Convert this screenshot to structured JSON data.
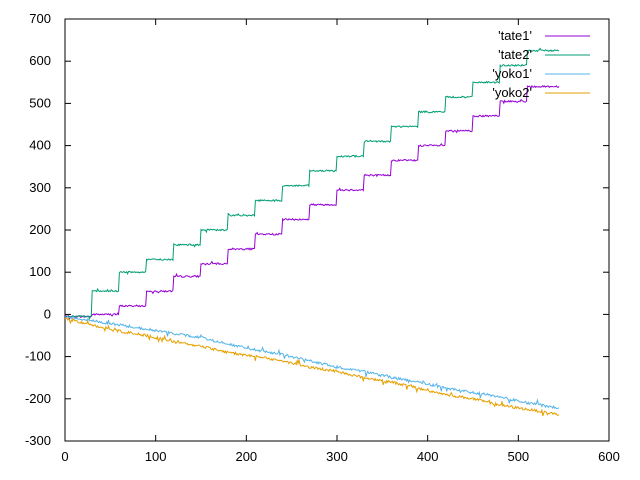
{
  "chart_data": {
    "type": "line",
    "title": "",
    "xlabel": "",
    "ylabel": "",
    "xlim": [
      0,
      600
    ],
    "ylim": [
      -300,
      700
    ],
    "xticks": [
      0,
      100,
      200,
      300,
      400,
      500,
      600
    ],
    "yticks": [
      -300,
      -200,
      -100,
      0,
      100,
      200,
      300,
      400,
      500,
      600,
      700
    ],
    "grid": false,
    "legend_position": "top-right",
    "series": [
      {
        "name": "'tate1'",
        "color": "#9400d3",
        "x": [
          0,
          29,
          30,
          59,
          60,
          89,
          90,
          119,
          120,
          149,
          150,
          179,
          180,
          209,
          210,
          239,
          240,
          269,
          270,
          299,
          300,
          329,
          330,
          359,
          360,
          389,
          390,
          419,
          420,
          449,
          450,
          479,
          480,
          509,
          510,
          539,
          540,
          545
        ],
        "y": [
          -5,
          -5,
          0,
          0,
          20,
          20,
          55,
          55,
          90,
          90,
          120,
          120,
          155,
          155,
          190,
          190,
          225,
          225,
          260,
          260,
          295,
          295,
          330,
          330,
          365,
          365,
          400,
          400,
          435,
          435,
          470,
          470,
          505,
          505,
          540,
          540,
          540,
          540
        ]
      },
      {
        "name": "'tate2'",
        "color": "#009e73",
        "x": [
          0,
          29,
          30,
          59,
          60,
          89,
          90,
          119,
          120,
          149,
          150,
          179,
          180,
          209,
          210,
          239,
          240,
          269,
          270,
          299,
          300,
          329,
          330,
          359,
          360,
          389,
          390,
          419,
          420,
          449,
          450,
          479,
          480,
          509,
          510,
          539,
          540,
          545
        ],
        "y": [
          -5,
          -5,
          55,
          55,
          100,
          100,
          130,
          130,
          165,
          165,
          200,
          200,
          235,
          235,
          270,
          270,
          305,
          305,
          340,
          340,
          375,
          375,
          410,
          410,
          445,
          445,
          480,
          480,
          515,
          515,
          550,
          550,
          590,
          590,
          625,
          625,
          625,
          625
        ]
      },
      {
        "name": "'yoko1'",
        "color": "#56b4e9",
        "x": [
          0,
          30,
          60,
          90,
          120,
          150,
          180,
          210,
          240,
          270,
          300,
          330,
          360,
          390,
          420,
          450,
          480,
          510,
          540,
          545
        ],
        "y": [
          -5,
          -15,
          -25,
          -35,
          -45,
          -55,
          -70,
          -85,
          -95,
          -110,
          -125,
          -135,
          -150,
          -160,
          -175,
          -185,
          -195,
          -210,
          -220,
          -222
        ]
      },
      {
        "name": "'yoko2'",
        "color": "#e69f00",
        "x": [
          0,
          30,
          60,
          90,
          120,
          150,
          180,
          210,
          240,
          270,
          300,
          330,
          360,
          390,
          420,
          450,
          480,
          510,
          540,
          545
        ],
        "y": [
          -10,
          -25,
          -40,
          -50,
          -65,
          -75,
          -90,
          -100,
          -110,
          -125,
          -135,
          -150,
          -160,
          -175,
          -190,
          -200,
          -215,
          -225,
          -235,
          -238
        ]
      }
    ]
  }
}
